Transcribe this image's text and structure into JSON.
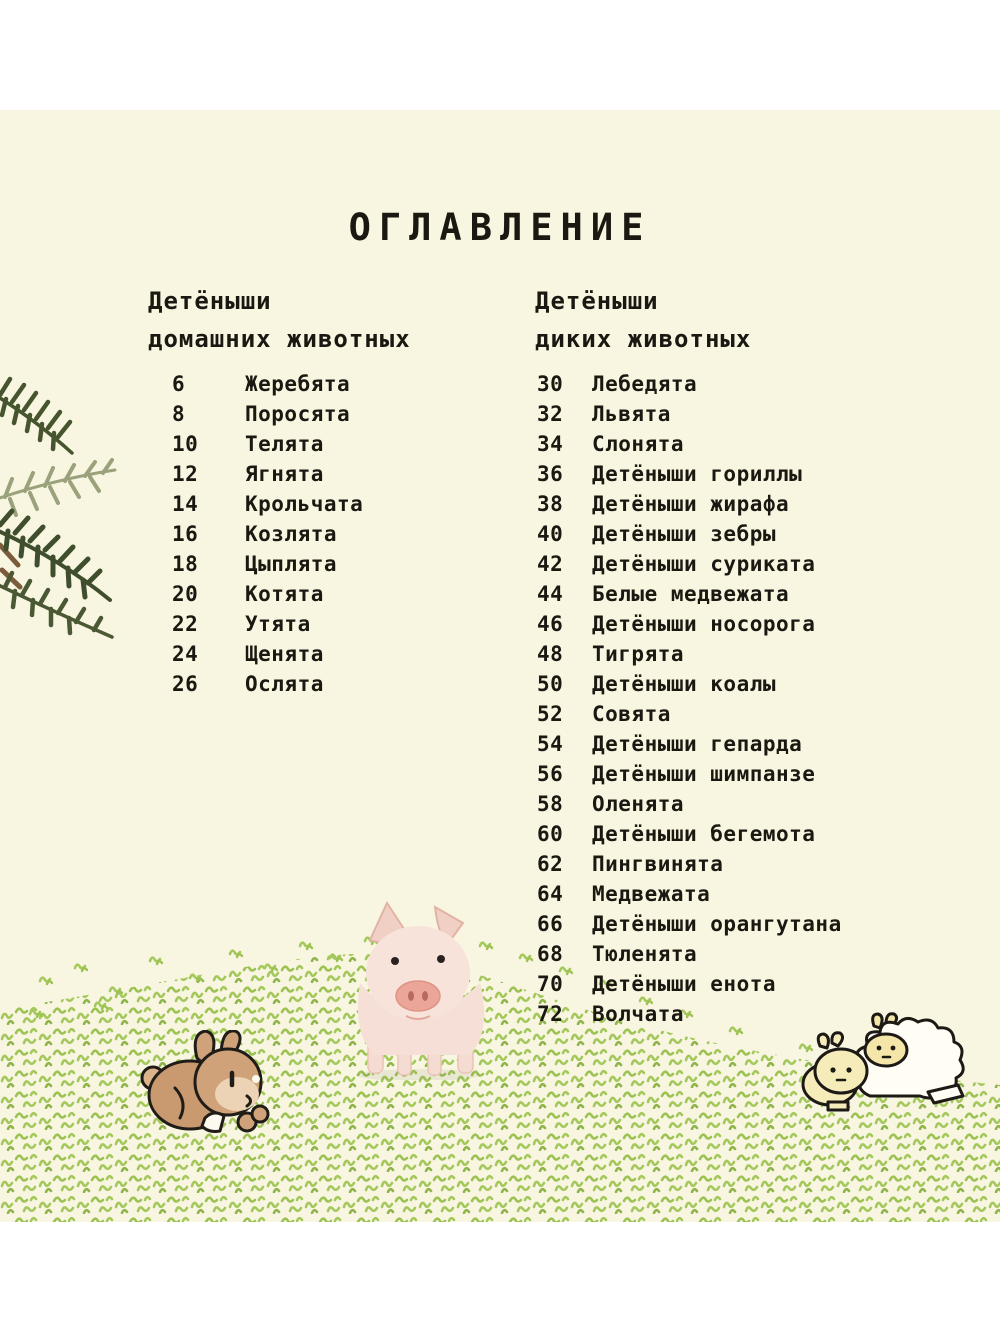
{
  "page": {
    "title": "ОГЛАВЛЕНИЕ"
  },
  "colors": {
    "page-cream": "#f8f6e1",
    "text-ink": "#1b1812",
    "grass-green": "#a4c85c",
    "grass-green-dark": "#8fb54a"
  },
  "toc": {
    "left": {
      "heading_line1": "Детёныши",
      "heading_line2": "домашних животных",
      "entries": [
        {
          "page": "6",
          "label": "Жеребята"
        },
        {
          "page": "8",
          "label": "Поросята"
        },
        {
          "page": "10",
          "label": "Телята"
        },
        {
          "page": "12",
          "label": "Ягнята"
        },
        {
          "page": "14",
          "label": "Крольчата"
        },
        {
          "page": "16",
          "label": "Козлята"
        },
        {
          "page": "18",
          "label": "Цыплята"
        },
        {
          "page": "20",
          "label": "Котята"
        },
        {
          "page": "22",
          "label": "Утята"
        },
        {
          "page": "24",
          "label": "Щенята"
        },
        {
          "page": "26",
          "label": "Ослята"
        }
      ]
    },
    "right": {
      "heading_line1": "Детёныши",
      "heading_line2": "диких животных",
      "entries": [
        {
          "page": "30",
          "label": "Лебедята"
        },
        {
          "page": "32",
          "label": "Львята"
        },
        {
          "page": "34",
          "label": "Слонята"
        },
        {
          "page": "36",
          "label": "Детёныши гориллы"
        },
        {
          "page": "38",
          "label": "Детёныши жирафа"
        },
        {
          "page": "40",
          "label": "Детёныши зебры"
        },
        {
          "page": "42",
          "label": "Детёныши суриката"
        },
        {
          "page": "44",
          "label": "Белые медвежата"
        },
        {
          "page": "46",
          "label": "Детёныши носорога"
        },
        {
          "page": "48",
          "label": "Тигрята"
        },
        {
          "page": "50",
          "label": "Детёныши коалы"
        },
        {
          "page": "52",
          "label": "Совята"
        },
        {
          "page": "54",
          "label": "Детёныши гепарда"
        },
        {
          "page": "56",
          "label": "Детёныши шимпанзе"
        },
        {
          "page": "58",
          "label": "Оленята"
        },
        {
          "page": "60",
          "label": "Детёныши бегемота"
        },
        {
          "page": "62",
          "label": "Пингвинята"
        },
        {
          "page": "64",
          "label": "Медвежата"
        },
        {
          "page": "66",
          "label": "Детёныши орангутана"
        },
        {
          "page": "68",
          "label": "Тюленята"
        },
        {
          "page": "70",
          "label": "Детёныши енота"
        },
        {
          "page": "72",
          "label": "Волчата"
        }
      ]
    }
  },
  "illustrations": {
    "palm": "palm-leaves",
    "piglet": "piglet-photo",
    "rabbit": "brown-rabbit-cartoon",
    "sheep": "sheep-pair-cartoon",
    "grass": "grass-hill"
  }
}
